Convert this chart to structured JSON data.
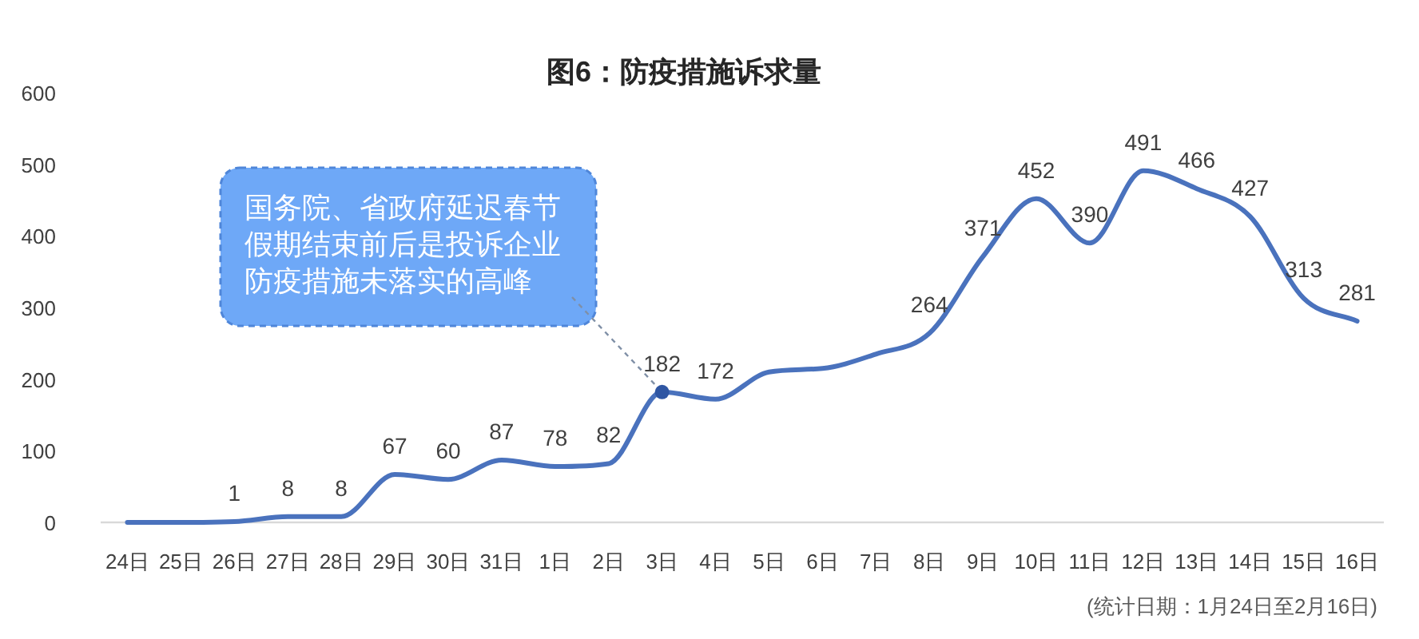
{
  "chart_data": {
    "type": "line",
    "title": "图6：防疫措施诉求量",
    "categories": [
      "24日",
      "25日",
      "26日",
      "27日",
      "28日",
      "29日",
      "30日",
      "31日",
      "1日",
      "2日",
      "3日",
      "4日",
      "5日",
      "6日",
      "7日",
      "8日",
      "9日",
      "10日",
      "11日",
      "12日",
      "13日",
      "14日",
      "15日",
      "16日"
    ],
    "values": [
      0,
      0,
      1,
      8,
      8,
      67,
      60,
      87,
      78,
      82,
      182,
      172,
      210,
      215,
      235,
      264,
      371,
      452,
      390,
      491,
      466,
      427,
      313,
      281
    ],
    "value_labels": [
      null,
      null,
      "1",
      "8",
      "8",
      "67",
      "60",
      "87",
      "78",
      "82",
      "182",
      "172",
      null,
      null,
      null,
      "264",
      "371",
      "452",
      "390",
      "491",
      "466",
      "427",
      "313",
      "281"
    ],
    "color": "#4a72bd",
    "ylim": [
      0,
      600
    ],
    "yticks": [
      0,
      100,
      200,
      300,
      400,
      500,
      600
    ],
    "annotations": [
      {
        "text": "国务院、省政府延迟春节假期结束前后是投诉企业防疫措施未落实的高峰",
        "x": "3日",
        "y": 182
      },
      "(统计日期：1月24日至2月16日)"
    ]
  }
}
